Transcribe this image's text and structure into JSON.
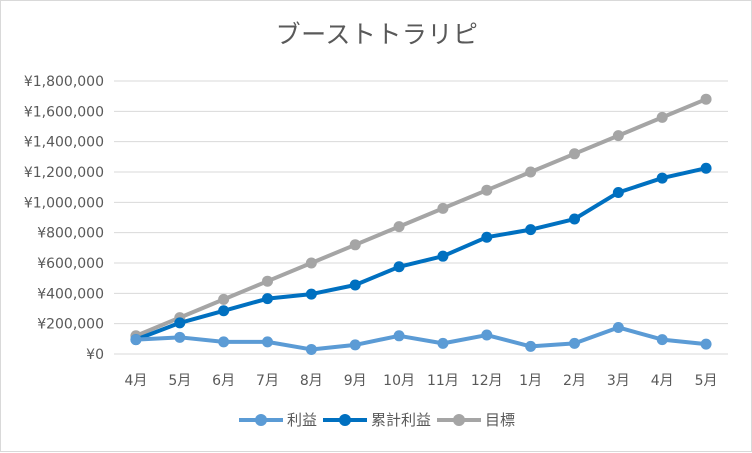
{
  "chart_data": {
    "type": "line",
    "title": "ブーストトラリピ",
    "categories": [
      "4月",
      "5月",
      "6月",
      "7月",
      "8月",
      "9月",
      "10月",
      "11月",
      "12月",
      "1月",
      "2月",
      "3月",
      "4月",
      "5月"
    ],
    "ylim": [
      0,
      1800000
    ],
    "yticks": [
      0,
      200000,
      400000,
      600000,
      800000,
      1000000,
      1200000,
      1400000,
      1600000,
      1800000
    ],
    "ytick_labels": [
      "¥0",
      "¥200,000",
      "¥400,000",
      "¥600,000",
      "¥800,000",
      "¥1,000,000",
      "¥1,200,000",
      "¥1,400,000",
      "¥1,600,000",
      "¥1,800,000"
    ],
    "grid": true,
    "legend_position": "bottom",
    "series": [
      {
        "name": "利益",
        "color": "#5b9bd5",
        "values": [
          95000,
          110000,
          80000,
          80000,
          30000,
          60000,
          120000,
          70000,
          125000,
          50000,
          70000,
          175000,
          95000,
          65000
        ]
      },
      {
        "name": "累計利益",
        "color": "#0070c0",
        "values": [
          95000,
          205000,
          285000,
          365000,
          395000,
          455000,
          575000,
          645000,
          770000,
          820000,
          890000,
          1065000,
          1160000,
          1225000
        ]
      },
      {
        "name": "目標",
        "color": "#a5a5a5",
        "values": [
          120000,
          240000,
          360000,
          480000,
          600000,
          720000,
          840000,
          960000,
          1080000,
          1200000,
          1320000,
          1440000,
          1560000,
          1680000
        ]
      }
    ]
  }
}
